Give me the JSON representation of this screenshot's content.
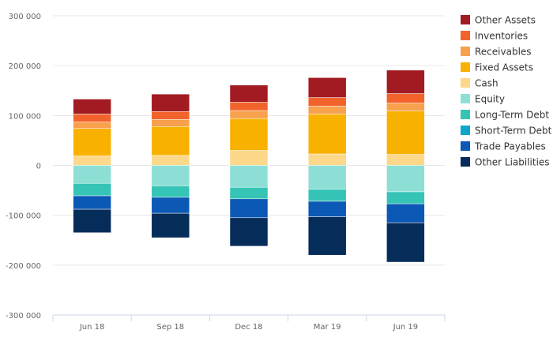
{
  "chart_data": {
    "type": "bar",
    "stacked": true,
    "title": "",
    "xlabel": "",
    "ylabel": "",
    "categories": [
      "Jun 18",
      "Sep 18",
      "Dec 18",
      "Mar 19",
      "Jun 19"
    ],
    "ylim": [
      -300000,
      300000
    ],
    "yticks": [
      -300000,
      -200000,
      -100000,
      0,
      100000,
      200000,
      300000
    ],
    "ytick_labels": [
      "-300 000",
      "-200 000",
      "-100 000",
      "0",
      "100 000",
      "200 000",
      "300 000"
    ],
    "grid": true,
    "legend_position": "right",
    "series": [
      {
        "name": "Other Assets",
        "color": "#a21b22",
        "values": [
          30000,
          35000,
          34000,
          40000,
          47000
        ]
      },
      {
        "name": "Inventories",
        "color": "#f2632b",
        "values": [
          16000,
          16000,
          17000,
          17000,
          19000
        ]
      },
      {
        "name": "Receivables",
        "color": "#f7a04d",
        "values": [
          13000,
          14000,
          16000,
          16000,
          16000
        ]
      },
      {
        "name": "Fixed Assets",
        "color": "#f9b100",
        "values": [
          55000,
          58000,
          64000,
          80000,
          87000
        ]
      },
      {
        "name": "Cash",
        "color": "#fdd88a",
        "values": [
          19000,
          20000,
          30000,
          23000,
          22000
        ]
      },
      {
        "name": "Equity",
        "color": "#8ddfd6",
        "values": [
          -36000,
          -41000,
          -44000,
          -48000,
          -53000
        ]
      },
      {
        "name": "Long-Term Debt",
        "color": "#35c4b5",
        "values": [
          -25000,
          -23000,
          -23000,
          -24000,
          -24000
        ]
      },
      {
        "name": "Short-Term Debt",
        "color": "#0fa6c9",
        "values": [
          0,
          0,
          0,
          0,
          0
        ]
      },
      {
        "name": "Trade Payables",
        "color": "#0b59b5",
        "values": [
          -27000,
          -32000,
          -38000,
          -31000,
          -38000
        ]
      },
      {
        "name": "Other Liabilities",
        "color": "#062c5a",
        "values": [
          -47000,
          -49000,
          -57000,
          -77000,
          -79000
        ]
      }
    ]
  }
}
